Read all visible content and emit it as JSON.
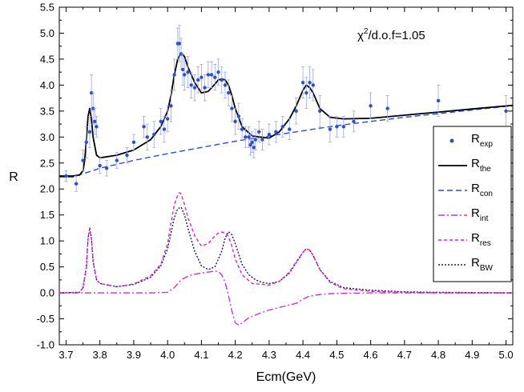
{
  "chart_data": {
    "type": "line",
    "title": "",
    "xlabel": "Ecm(GeV)",
    "ylabel": "R",
    "xlim": [
      3.68,
      5.02
    ],
    "ylim": [
      -1.0,
      5.5
    ],
    "x_ticks": [
      "3.7",
      "3.8",
      "3.9",
      "4.0",
      "4.1",
      "4.2",
      "4.3",
      "4.4",
      "4.5",
      "4.6",
      "4.7",
      "4.8",
      "4.9",
      "5.0"
    ],
    "y_ticks": [
      "-1.0",
      "-0.5",
      "0.0",
      "0.5",
      "1.0",
      "1.5",
      "2.0",
      "2.5",
      "3.0",
      "3.5",
      "4.0",
      "4.5",
      "5.0",
      "5.5"
    ],
    "annotation": {
      "base": "χ",
      "sup": "2",
      "rest": "/d.o.f=1.05"
    },
    "legend": {
      "position": "right",
      "entries": [
        {
          "key": "R_exp",
          "main": "R",
          "sub": "exp",
          "color": "#2b4fd8",
          "style": "marker"
        },
        {
          "key": "R_the",
          "main": "R",
          "sub": "the",
          "color": "#000000",
          "style": "solid"
        },
        {
          "key": "R_con",
          "main": "R",
          "sub": "con",
          "color": "#2b4fd8",
          "style": "dash"
        },
        {
          "key": "R_int",
          "main": "R",
          "sub": "int",
          "color": "#cc33cc",
          "style": "dashdot"
        },
        {
          "key": "R_res",
          "main": "R",
          "sub": "res",
          "color": "#e21ecf",
          "style": "shortdash"
        },
        {
          "key": "R_BW",
          "main": "R",
          "sub": "BW",
          "color": "#1a1a66",
          "style": "dot"
        }
      ]
    },
    "series": [
      {
        "name": "R_exp",
        "x": [
          3.7,
          3.73,
          3.75,
          3.76,
          3.77,
          3.775,
          3.78,
          3.785,
          3.79,
          3.8,
          3.82,
          3.85,
          3.88,
          3.9,
          3.93,
          3.94,
          3.96,
          3.98,
          3.99,
          4.0,
          4.01,
          4.02,
          4.03,
          4.035,
          4.04,
          4.045,
          4.05,
          4.06,
          4.07,
          4.08,
          4.09,
          4.1,
          4.11,
          4.12,
          4.13,
          4.14,
          4.15,
          4.16,
          4.17,
          4.18,
          4.19,
          4.2,
          4.21,
          4.22,
          4.23,
          4.24,
          4.245,
          4.25,
          4.255,
          4.26,
          4.27,
          4.28,
          4.3,
          4.32,
          4.34,
          4.36,
          4.38,
          4.4,
          4.41,
          4.42,
          4.43,
          4.45,
          4.48,
          4.5,
          4.52,
          4.55,
          4.6,
          4.65,
          4.8,
          5.0
        ],
        "y": [
          2.25,
          2.1,
          2.55,
          2.9,
          3.1,
          3.85,
          3.55,
          3.3,
          3.2,
          2.45,
          2.4,
          2.55,
          2.65,
          2.9,
          3.2,
          3.0,
          3.05,
          3.3,
          3.15,
          3.35,
          3.6,
          4.2,
          4.8,
          4.8,
          4.6,
          4.3,
          4.2,
          4.25,
          4.0,
          3.95,
          4.1,
          4.15,
          3.95,
          4.2,
          4.2,
          4.15,
          4.25,
          4.1,
          4.0,
          3.85,
          3.55,
          3.3,
          3.4,
          3.15,
          3.0,
          3.0,
          2.85,
          2.9,
          2.8,
          2.95,
          3.1,
          2.95,
          3.05,
          3.1,
          3.2,
          3.15,
          3.5,
          4.05,
          3.85,
          4.05,
          4.0,
          3.5,
          3.15,
          3.2,
          3.2,
          3.3,
          3.6,
          3.55,
          3.7,
          3.5
        ],
        "err": [
          0.1,
          0.15,
          0.2,
          0.3,
          0.3,
          0.35,
          0.3,
          0.25,
          0.2,
          0.15,
          0.15,
          0.15,
          0.15,
          0.15,
          0.2,
          0.25,
          0.25,
          0.25,
          0.25,
          0.25,
          0.3,
          0.3,
          0.3,
          0.35,
          0.3,
          0.3,
          0.3,
          0.3,
          0.25,
          0.25,
          0.25,
          0.25,
          0.25,
          0.25,
          0.25,
          0.25,
          0.25,
          0.25,
          0.25,
          0.25,
          0.25,
          0.25,
          0.25,
          0.2,
          0.2,
          0.2,
          0.2,
          0.2,
          0.2,
          0.2,
          0.2,
          0.2,
          0.2,
          0.2,
          0.2,
          0.2,
          0.25,
          0.3,
          0.3,
          0.3,
          0.3,
          0.3,
          0.25,
          0.2,
          0.2,
          0.2,
          0.25,
          0.25,
          0.3,
          0.3
        ]
      },
      {
        "name": "R_the",
        "x": [
          3.68,
          3.72,
          3.74,
          3.75,
          3.755,
          3.76,
          3.765,
          3.77,
          3.775,
          3.78,
          3.79,
          3.8,
          3.85,
          3.9,
          3.95,
          3.98,
          4.0,
          4.01,
          4.02,
          4.03,
          4.04,
          4.05,
          4.06,
          4.08,
          4.1,
          4.12,
          4.14,
          4.15,
          4.16,
          4.17,
          4.18,
          4.19,
          4.2,
          4.22,
          4.25,
          4.3,
          4.33,
          4.36,
          4.38,
          4.4,
          4.41,
          4.42,
          4.43,
          4.45,
          4.48,
          4.52,
          4.6,
          4.7,
          4.8,
          4.9,
          5.0,
          5.02
        ],
        "y": [
          2.25,
          2.25,
          2.27,
          2.35,
          2.55,
          2.95,
          3.4,
          3.55,
          3.35,
          3.0,
          2.65,
          2.6,
          2.65,
          2.75,
          2.95,
          3.2,
          3.5,
          3.8,
          4.2,
          4.5,
          4.62,
          4.55,
          4.35,
          4.05,
          3.85,
          3.88,
          4.02,
          4.1,
          4.12,
          4.1,
          4.0,
          3.8,
          3.55,
          3.2,
          3.02,
          2.98,
          3.1,
          3.35,
          3.6,
          3.9,
          4.0,
          3.95,
          3.85,
          3.55,
          3.38,
          3.35,
          3.36,
          3.42,
          3.48,
          3.54,
          3.6,
          3.61
        ]
      },
      {
        "name": "R_con",
        "x": [
          3.68,
          3.72,
          3.8,
          3.9,
          4.0,
          4.1,
          4.2,
          4.3,
          4.4,
          4.5,
          4.6,
          4.7,
          4.8,
          4.9,
          5.0,
          5.02
        ],
        "y": [
          2.23,
          2.23,
          2.4,
          2.55,
          2.68,
          2.8,
          2.92,
          3.02,
          3.12,
          3.22,
          3.3,
          3.38,
          3.45,
          3.52,
          3.59,
          3.6
        ]
      },
      {
        "name": "R_int",
        "x": [
          3.68,
          3.95,
          4.0,
          4.02,
          4.04,
          4.06,
          4.08,
          4.1,
          4.12,
          4.14,
          4.15,
          4.16,
          4.17,
          4.18,
          4.19,
          4.2,
          4.21,
          4.22,
          4.24,
          4.27,
          4.3,
          4.35,
          4.38,
          4.4,
          4.42,
          4.45,
          4.5,
          4.6,
          4.7,
          4.8,
          5.02
        ],
        "y": [
          0.0,
          0.0,
          0.01,
          0.1,
          0.25,
          0.32,
          0.36,
          0.38,
          0.4,
          0.42,
          0.41,
          0.35,
          0.2,
          -0.05,
          -0.35,
          -0.58,
          -0.62,
          -0.58,
          -0.48,
          -0.4,
          -0.33,
          -0.25,
          -0.2,
          -0.12,
          -0.06,
          -0.03,
          -0.01,
          0.0,
          0.0,
          0.0,
          0.0
        ]
      },
      {
        "name": "R_res",
        "x": [
          3.68,
          3.74,
          3.75,
          3.76,
          3.765,
          3.77,
          3.775,
          3.78,
          3.79,
          3.8,
          3.85,
          3.9,
          3.95,
          3.98,
          4.0,
          4.01,
          4.02,
          4.03,
          4.035,
          4.04,
          4.05,
          4.06,
          4.08,
          4.1,
          4.12,
          4.14,
          4.15,
          4.16,
          4.17,
          4.18,
          4.19,
          4.2,
          4.22,
          4.25,
          4.3,
          4.33,
          4.36,
          4.38,
          4.4,
          4.41,
          4.42,
          4.43,
          4.45,
          4.48,
          4.52,
          4.6,
          4.7,
          4.8,
          5.02
        ],
        "y": [
          0.0,
          0.01,
          0.1,
          0.5,
          1.05,
          1.25,
          1.05,
          0.6,
          0.25,
          0.18,
          0.12,
          0.17,
          0.33,
          0.55,
          0.95,
          1.35,
          1.7,
          1.88,
          1.93,
          1.9,
          1.7,
          1.45,
          1.1,
          0.9,
          0.95,
          1.1,
          1.15,
          1.17,
          1.16,
          1.08,
          0.9,
          0.65,
          0.35,
          0.18,
          0.15,
          0.22,
          0.4,
          0.6,
          0.78,
          0.85,
          0.82,
          0.72,
          0.45,
          0.2,
          0.08,
          0.03,
          0.01,
          0.0,
          0.0
        ]
      },
      {
        "name": "R_BW",
        "x": [
          3.68,
          3.74,
          3.75,
          3.76,
          3.765,
          3.77,
          3.775,
          3.78,
          3.79,
          3.8,
          3.85,
          3.9,
          3.95,
          3.98,
          4.0,
          4.01,
          4.02,
          4.03,
          4.04,
          4.05,
          4.06,
          4.08,
          4.1,
          4.12,
          4.14,
          4.16,
          4.17,
          4.18,
          4.19,
          4.2,
          4.21,
          4.22,
          4.24,
          4.26,
          4.28,
          4.3,
          4.33,
          4.36,
          4.38,
          4.4,
          4.41,
          4.42,
          4.43,
          4.45,
          4.48,
          4.52,
          4.6,
          4.7,
          4.8,
          5.02
        ],
        "y": [
          0.0,
          0.01,
          0.1,
          0.5,
          1.05,
          1.25,
          1.05,
          0.6,
          0.25,
          0.18,
          0.12,
          0.16,
          0.3,
          0.52,
          0.85,
          1.15,
          1.45,
          1.62,
          1.65,
          1.5,
          1.25,
          0.8,
          0.52,
          0.45,
          0.5,
          0.8,
          1.05,
          1.18,
          1.12,
          0.95,
          0.75,
          0.55,
          0.35,
          0.25,
          0.2,
          0.18,
          0.22,
          0.38,
          0.58,
          0.78,
          0.85,
          0.82,
          0.72,
          0.45,
          0.22,
          0.1,
          0.05,
          0.02,
          0.01,
          0.0
        ]
      }
    ]
  }
}
